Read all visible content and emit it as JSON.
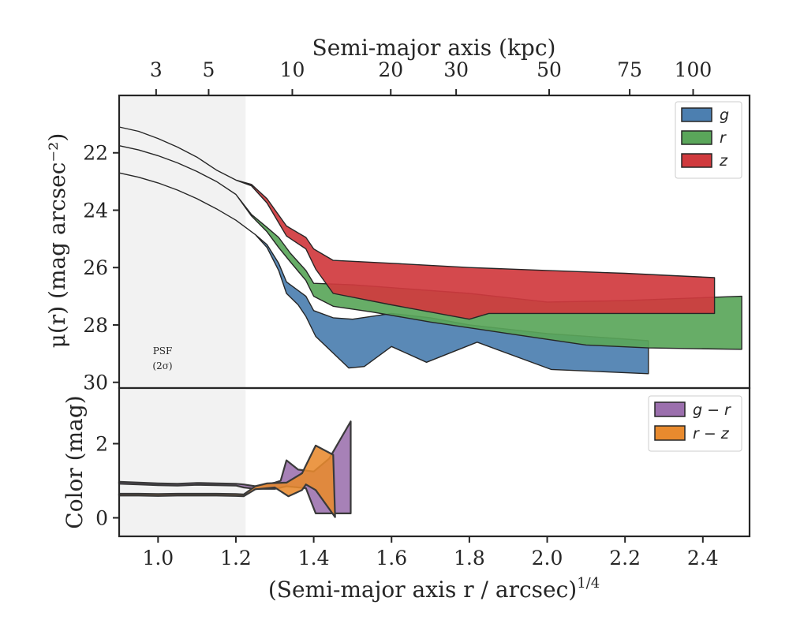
{
  "chart_data": [
    {
      "type": "area",
      "panel": "surface-brightness",
      "top_axis": {
        "label": "Semi-major axis (kpc)",
        "ticks": [
          {
            "label": "3",
            "r4": 0.995
          },
          {
            "label": "5",
            "r4": 1.13
          },
          {
            "label": "10",
            "r4": 1.345
          },
          {
            "label": "20",
            "r4": 1.598
          },
          {
            "label": "30",
            "r4": 1.766
          },
          {
            "label": "50",
            "r4": 2.005
          },
          {
            "label": "75",
            "r4": 2.212
          },
          {
            "label": "100",
            "r4": 2.375
          }
        ]
      },
      "xlabel": "(Semi-major axis r / arcsec)^1/4",
      "ylabel": "μ(r) (mag arcsec⁻²)",
      "xlim": [
        0.9,
        2.52
      ],
      "ylim": [
        30.2,
        20.0
      ],
      "y_inverted": true,
      "yticks": [
        22,
        24,
        26,
        28,
        30
      ],
      "psf_region": {
        "x_max": 1.225,
        "label_line1": "PSF",
        "label_line2": "(2σ)"
      },
      "legend": {
        "placement": "top-right"
      },
      "series": [
        {
          "name": "g",
          "color": "#4c7fb0",
          "upper": [
            [
              0.9,
              22.7
            ],
            [
              0.95,
              22.85
            ],
            [
              1.0,
              23.05
            ],
            [
              1.05,
              23.3
            ],
            [
              1.1,
              23.6
            ],
            [
              1.15,
              23.95
            ],
            [
              1.2,
              24.35
            ],
            [
              1.25,
              24.85
            ],
            [
              1.28,
              25.2
            ],
            [
              1.31,
              25.85
            ],
            [
              1.33,
              26.5
            ],
            [
              1.36,
              26.8
            ],
            [
              1.38,
              27.0
            ],
            [
              1.4,
              27.5
            ],
            [
              1.45,
              27.75
            ],
            [
              1.5,
              27.8
            ],
            [
              1.6,
              27.6
            ],
            [
              1.7,
              27.75
            ],
            [
              1.8,
              28.0
            ],
            [
              2.0,
              28.3
            ],
            [
              2.26,
              28.55
            ]
          ],
          "lower": [
            [
              0.9,
              22.7
            ],
            [
              0.95,
              22.85
            ],
            [
              1.0,
              23.05
            ],
            [
              1.05,
              23.3
            ],
            [
              1.1,
              23.6
            ],
            [
              1.15,
              23.95
            ],
            [
              1.2,
              24.35
            ],
            [
              1.25,
              24.85
            ],
            [
              1.28,
              25.3
            ],
            [
              1.31,
              26.1
            ],
            [
              1.33,
              26.9
            ],
            [
              1.36,
              27.3
            ],
            [
              1.38,
              27.7
            ],
            [
              1.405,
              28.4
            ],
            [
              1.49,
              29.5
            ],
            [
              1.53,
              29.45
            ],
            [
              1.6,
              28.75
            ],
            [
              1.69,
              29.3
            ],
            [
              1.82,
              28.6
            ],
            [
              2.01,
              29.55
            ],
            [
              2.26,
              29.7
            ]
          ]
        },
        {
          "name": "r",
          "color": "#5aa65a",
          "upper": [
            [
              0.9,
              21.75
            ],
            [
              0.95,
              21.9
            ],
            [
              1.0,
              22.1
            ],
            [
              1.05,
              22.35
            ],
            [
              1.1,
              22.65
            ],
            [
              1.15,
              23.0
            ],
            [
              1.2,
              23.45
            ],
            [
              1.24,
              24.15
            ],
            [
              1.28,
              24.6
            ],
            [
              1.31,
              24.95
            ],
            [
              1.34,
              25.5
            ],
            [
              1.38,
              26.1
            ],
            [
              1.4,
              26.55
            ],
            [
              1.5,
              26.6
            ],
            [
              1.6,
              26.7
            ],
            [
              1.8,
              26.9
            ],
            [
              2.0,
              27.2
            ],
            [
              2.2,
              27.15
            ],
            [
              2.5,
              27.0
            ]
          ],
          "lower": [
            [
              0.9,
              21.75
            ],
            [
              0.95,
              21.9
            ],
            [
              1.0,
              22.1
            ],
            [
              1.05,
              22.35
            ],
            [
              1.1,
              22.65
            ],
            [
              1.15,
              23.0
            ],
            [
              1.2,
              23.45
            ],
            [
              1.24,
              24.2
            ],
            [
              1.28,
              24.75
            ],
            [
              1.31,
              25.3
            ],
            [
              1.34,
              25.8
            ],
            [
              1.38,
              26.45
            ],
            [
              1.4,
              27.0
            ],
            [
              1.45,
              27.35
            ],
            [
              1.55,
              27.55
            ],
            [
              1.7,
              27.9
            ],
            [
              1.9,
              28.3
            ],
            [
              2.1,
              28.7
            ],
            [
              2.26,
              28.8
            ],
            [
              2.5,
              28.85
            ]
          ]
        },
        {
          "name": "z",
          "color": "#d03a3e",
          "upper": [
            [
              0.9,
              21.1
            ],
            [
              0.95,
              21.25
            ],
            [
              1.0,
              21.5
            ],
            [
              1.05,
              21.8
            ],
            [
              1.1,
              22.15
            ],
            [
              1.15,
              22.6
            ],
            [
              1.2,
              22.95
            ],
            [
              1.24,
              23.1
            ],
            [
              1.28,
              23.6
            ],
            [
              1.33,
              24.55
            ],
            [
              1.38,
              24.95
            ],
            [
              1.4,
              25.35
            ],
            [
              1.45,
              25.75
            ],
            [
              1.6,
              25.85
            ],
            [
              1.8,
              26.0
            ],
            [
              2.0,
              26.1
            ],
            [
              2.2,
              26.2
            ],
            [
              2.43,
              26.35
            ]
          ],
          "lower": [
            [
              0.9,
              21.1
            ],
            [
              0.95,
              21.25
            ],
            [
              1.0,
              21.5
            ],
            [
              1.05,
              21.8
            ],
            [
              1.1,
              22.15
            ],
            [
              1.15,
              22.6
            ],
            [
              1.2,
              22.95
            ],
            [
              1.24,
              23.15
            ],
            [
              1.28,
              23.75
            ],
            [
              1.33,
              24.9
            ],
            [
              1.38,
              25.35
            ],
            [
              1.405,
              26.05
            ],
            [
              1.45,
              26.9
            ],
            [
              1.6,
              27.3
            ],
            [
              1.8,
              27.8
            ],
            [
              1.85,
              27.6
            ],
            [
              2.0,
              27.6
            ],
            [
              2.2,
              27.6
            ],
            [
              2.43,
              27.6
            ]
          ]
        }
      ]
    },
    {
      "type": "area",
      "panel": "color",
      "xlabel": "(Semi-major axis r / arcsec)^1/4",
      "ylabel": "Color (mag)",
      "xlim": [
        0.9,
        2.52
      ],
      "ylim": [
        -0.5,
        3.5
      ],
      "xticks": [
        1.0,
        1.2,
        1.4,
        1.6,
        1.8,
        2.0,
        2.2,
        2.4
      ],
      "xtick_labels": [
        "1.0",
        "1.2",
        "1.4",
        "1.6",
        "1.8",
        "2.0",
        "2.2",
        "2.4"
      ],
      "yticks": [
        0,
        2
      ],
      "legend": {
        "placement": "top-right"
      },
      "series": [
        {
          "name": "g − r",
          "color": "#9b6fad",
          "upper": [
            [
              0.9,
              0.97
            ],
            [
              0.95,
              0.95
            ],
            [
              1.0,
              0.93
            ],
            [
              1.05,
              0.92
            ],
            [
              1.1,
              0.94
            ],
            [
              1.15,
              0.93
            ],
            [
              1.2,
              0.92
            ],
            [
              1.22,
              0.9
            ],
            [
              1.25,
              0.85
            ],
            [
              1.3,
              0.95
            ],
            [
              1.315,
              1.0
            ],
            [
              1.33,
              1.55
            ],
            [
              1.36,
              1.3
            ],
            [
              1.4,
              1.25
            ],
            [
              1.44,
              1.6
            ],
            [
              1.495,
              2.6
            ]
          ],
          "lower": [
            [
              0.9,
              0.92
            ],
            [
              0.95,
              0.9
            ],
            [
              1.0,
              0.88
            ],
            [
              1.05,
              0.87
            ],
            [
              1.1,
              0.89
            ],
            [
              1.15,
              0.88
            ],
            [
              1.2,
              0.87
            ],
            [
              1.22,
              0.82
            ],
            [
              1.25,
              0.78
            ],
            [
              1.3,
              0.78
            ],
            [
              1.33,
              0.85
            ],
            [
              1.38,
              0.8
            ],
            [
              1.405,
              0.12
            ],
            [
              1.45,
              0.12
            ],
            [
              1.495,
              0.12
            ]
          ]
        },
        {
          "name": "r − z",
          "color": "#e88a2e",
          "upper": [
            [
              0.9,
              0.65
            ],
            [
              0.95,
              0.65
            ],
            [
              1.0,
              0.64
            ],
            [
              1.05,
              0.65
            ],
            [
              1.1,
              0.65
            ],
            [
              1.15,
              0.65
            ],
            [
              1.2,
              0.64
            ],
            [
              1.22,
              0.63
            ],
            [
              1.25,
              0.85
            ],
            [
              1.28,
              0.93
            ],
            [
              1.33,
              0.95
            ],
            [
              1.37,
              1.2
            ],
            [
              1.405,
              1.95
            ],
            [
              1.45,
              1.7
            ],
            [
              1.455,
              0.02
            ]
          ],
          "lower": [
            [
              0.9,
              0.6
            ],
            [
              0.95,
              0.6
            ],
            [
              1.0,
              0.59
            ],
            [
              1.05,
              0.6
            ],
            [
              1.1,
              0.6
            ],
            [
              1.15,
              0.6
            ],
            [
              1.2,
              0.59
            ],
            [
              1.22,
              0.58
            ],
            [
              1.25,
              0.77
            ],
            [
              1.3,
              0.82
            ],
            [
              1.335,
              0.58
            ],
            [
              1.37,
              0.75
            ],
            [
              1.38,
              0.9
            ],
            [
              1.405,
              0.75
            ],
            [
              1.455,
              0.02
            ]
          ]
        }
      ]
    }
  ],
  "labels": {
    "top_axis_title": "Semi-major axis (kpc)",
    "y_title_top": "μ(r) (mag arcsec⁻²)",
    "y_title_bottom": "Color (mag)",
    "x_title_main": "(Semi-major axis r / arcsec)",
    "x_title_exp": "1/4",
    "psf_line1": "PSF",
    "psf_line2": "(2σ)",
    "legend_top": [
      "g",
      "r",
      "z"
    ],
    "legend_bottom": [
      "g − r",
      "r − z"
    ]
  }
}
